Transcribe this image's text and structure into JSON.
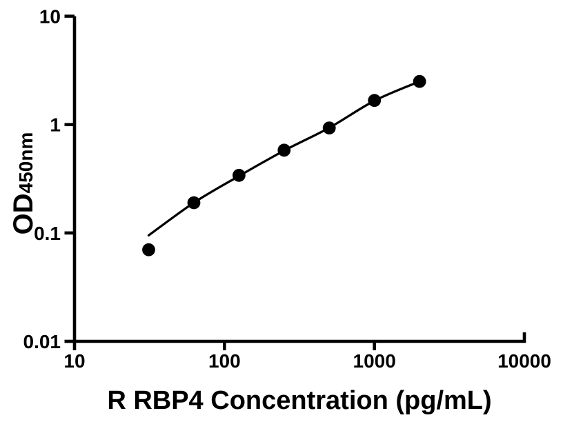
{
  "figure": {
    "background": "#ffffff",
    "ink_color": "#000000"
  },
  "chart_data": {
    "type": "scatter",
    "title": "",
    "xlabel": "R RBP4 Concentration (pg/mL)",
    "ylabel_main": "OD",
    "ylabel_subscript": "450nm",
    "x_scale": "log",
    "y_scale": "log",
    "xlim": [
      10,
      10000
    ],
    "ylim": [
      0.01,
      10
    ],
    "x_ticks": [
      10,
      100,
      1000,
      10000
    ],
    "x_tick_labels": [
      "10",
      "100",
      "1000",
      "10000"
    ],
    "y_ticks": [
      10,
      1,
      0.1,
      0.01
    ],
    "y_tick_labels": [
      "10",
      "1",
      "0.1",
      "0.01"
    ],
    "grid": false,
    "legend": null,
    "series": [
      {
        "name": "standard-points",
        "marker": "circle",
        "marker_color": "#000000",
        "points": [
          {
            "x": 31.25,
            "y": 0.07
          },
          {
            "x": 62.5,
            "y": 0.19
          },
          {
            "x": 125,
            "y": 0.34
          },
          {
            "x": 250,
            "y": 0.58
          },
          {
            "x": 500,
            "y": 0.93
          },
          {
            "x": 1000,
            "y": 1.67
          },
          {
            "x": 2000,
            "y": 2.5
          }
        ]
      }
    ],
    "fit_curve": {
      "name": "fitted-curve",
      "color": "#000000",
      "points": [
        {
          "x": 31.25,
          "y": 0.095
        },
        {
          "x": 62.5,
          "y": 0.19
        },
        {
          "x": 125,
          "y": 0.335
        },
        {
          "x": 250,
          "y": 0.575
        },
        {
          "x": 500,
          "y": 0.935
        },
        {
          "x": 1000,
          "y": 1.66
        },
        {
          "x": 2000,
          "y": 2.5
        }
      ]
    }
  }
}
